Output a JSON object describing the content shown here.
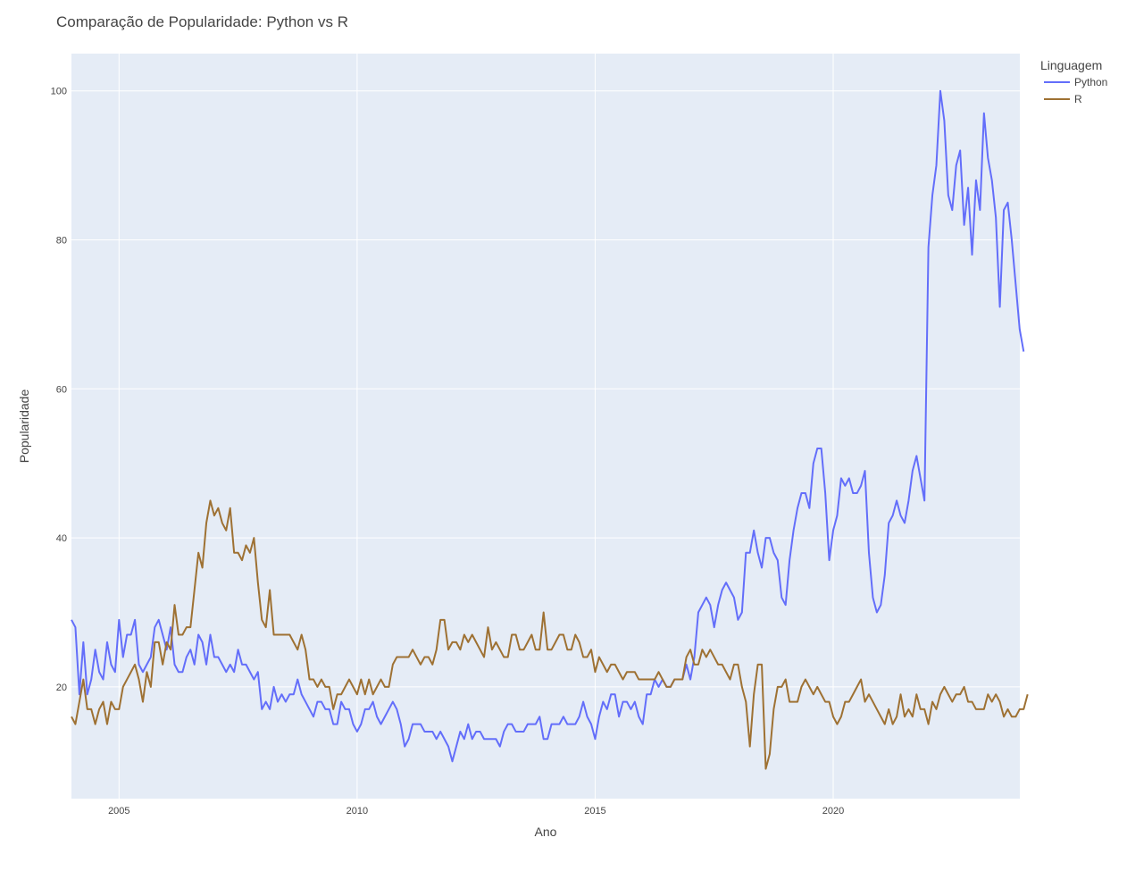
{
  "chart_data": {
    "type": "line",
    "title": "Comparação de Popularidade: Python vs R",
    "xlabel": "Ano",
    "ylabel": "Popularidade",
    "xlim": [
      2004.0,
      2023.92
    ],
    "ylim": [
      5,
      105
    ],
    "x_tick_labels": [
      "2005",
      "2010",
      "2015",
      "2020"
    ],
    "y_tick_labels": [
      "20",
      "40",
      "60",
      "80",
      "100"
    ],
    "grid": true,
    "legend": {
      "title": "Linguagem",
      "position": "top-right"
    },
    "x_start": "2004-01",
    "x_step": "month",
    "plot_bg": "#e5ecf6",
    "series": [
      {
        "name": "Python",
        "color": "#636efa",
        "values": [
          29,
          28,
          19,
          26,
          19,
          21,
          25,
          22,
          21,
          26,
          23,
          22,
          29,
          24,
          27,
          27,
          29,
          23,
          22,
          23,
          24,
          28,
          29,
          27,
          25,
          28,
          23,
          22,
          22,
          24,
          25,
          23,
          27,
          26,
          23,
          27,
          24,
          24,
          23,
          22,
          23,
          22,
          25,
          23,
          23,
          22,
          21,
          22,
          17,
          18,
          17,
          20,
          18,
          19,
          18,
          19,
          19,
          21,
          19,
          18,
          17,
          16,
          18,
          18,
          17,
          17,
          15,
          15,
          18,
          17,
          17,
          15,
          14,
          15,
          17,
          17,
          18,
          16,
          15,
          16,
          17,
          18,
          17,
          15,
          12,
          13,
          15,
          15,
          15,
          14,
          14,
          14,
          13,
          14,
          13,
          12,
          10,
          12,
          14,
          13,
          15,
          13,
          14,
          14,
          13,
          13,
          13,
          13,
          12,
          14,
          15,
          15,
          14,
          14,
          14,
          15,
          15,
          15,
          16,
          13,
          13,
          15,
          15,
          15,
          16,
          15,
          15,
          15,
          16,
          18,
          16,
          15,
          13,
          16,
          18,
          17,
          19,
          19,
          16,
          18,
          18,
          17,
          18,
          16,
          15,
          19,
          19,
          21,
          20,
          21,
          20,
          20,
          21,
          21,
          21,
          23,
          21,
          24,
          30,
          31,
          32,
          31,
          28,
          31,
          33,
          34,
          33,
          32,
          29,
          30,
          38,
          38,
          41,
          38,
          36,
          40,
          40,
          38,
          37,
          32,
          31,
          37,
          41,
          44,
          46,
          46,
          44,
          50,
          52,
          52,
          46,
          37,
          41,
          43,
          48,
          47,
          48,
          46,
          46,
          47,
          49,
          38,
          32,
          30,
          31,
          35,
          42,
          43,
          45,
          43,
          42,
          45,
          49,
          51,
          48,
          45,
          79,
          86,
          90,
          100,
          96,
          86,
          84,
          90,
          92,
          82,
          87,
          78,
          88,
          84,
          97,
          91,
          88,
          83,
          71,
          84,
          85,
          80,
          74,
          68,
          65
        ]
      },
      {
        "name": "R",
        "color": "#9e7133",
        "values": [
          16,
          15,
          18,
          21,
          17,
          17,
          15,
          17,
          18,
          15,
          18,
          17,
          17,
          20,
          21,
          22,
          23,
          21,
          18,
          22,
          20,
          26,
          26,
          23,
          26,
          25,
          31,
          27,
          27,
          28,
          28,
          33,
          38,
          36,
          42,
          45,
          43,
          44,
          42,
          41,
          44,
          38,
          38,
          37,
          39,
          38,
          40,
          34,
          29,
          28,
          33,
          27,
          27,
          27,
          27,
          27,
          26,
          25,
          27,
          25,
          21,
          21,
          20,
          21,
          20,
          20,
          17,
          19,
          19,
          20,
          21,
          20,
          19,
          21,
          19,
          21,
          19,
          20,
          21,
          20,
          20,
          23,
          24,
          24,
          24,
          24,
          25,
          24,
          23,
          24,
          24,
          23,
          25,
          29,
          29,
          25,
          26,
          26,
          25,
          27,
          26,
          27,
          26,
          25,
          24,
          28,
          25,
          26,
          25,
          24,
          24,
          27,
          27,
          25,
          25,
          26,
          27,
          25,
          25,
          30,
          25,
          25,
          26,
          27,
          27,
          25,
          25,
          27,
          26,
          24,
          24,
          25,
          22,
          24,
          23,
          22,
          23,
          23,
          22,
          21,
          22,
          22,
          22,
          21,
          21,
          21,
          21,
          21,
          22,
          21,
          20,
          20,
          21,
          21,
          21,
          24,
          25,
          23,
          23,
          25,
          24,
          25,
          24,
          23,
          23,
          22,
          21,
          23,
          23,
          20,
          18,
          12,
          19,
          23,
          23,
          9,
          11,
          17,
          20,
          20,
          21,
          18,
          18,
          18,
          20,
          21,
          20,
          19,
          20,
          19,
          18,
          18,
          16,
          15,
          16,
          18,
          18,
          19,
          20,
          21,
          18,
          19,
          18,
          17,
          16,
          15,
          17,
          15,
          16,
          19,
          16,
          17,
          16,
          19,
          17,
          17,
          15,
          18,
          17,
          19,
          20,
          19,
          18,
          19,
          19,
          20,
          18,
          18,
          17,
          17,
          17,
          19,
          18,
          19,
          18,
          16,
          17,
          16,
          16,
          17,
          17,
          19
        ]
      }
    ]
  }
}
